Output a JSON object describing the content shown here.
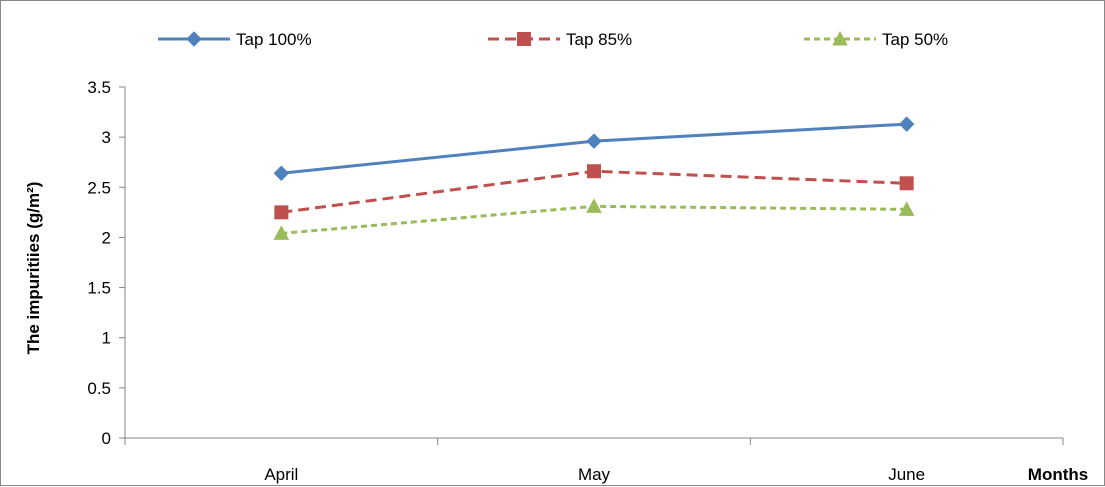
{
  "chart_data": {
    "type": "line",
    "categories": [
      "April",
      "May",
      "June"
    ],
    "series": [
      {
        "name": "Tap 100%",
        "values": [
          2.64,
          2.96,
          3.13
        ],
        "color": "#4F81BD",
        "marker": "diamond",
        "dash": "solid"
      },
      {
        "name": "Tap 85%",
        "values": [
          2.25,
          2.66,
          2.54
        ],
        "color": "#C0504D",
        "marker": "square",
        "dash": "dashed"
      },
      {
        "name": "Tap 50%",
        "values": [
          2.04,
          2.31,
          2.28
        ],
        "color": "#9BBB59",
        "marker": "triangle",
        "dash": "dashed"
      }
    ],
    "ylabel": "The impuritiies (g/m²)",
    "xlabel": "Months",
    "ylim": [
      0,
      3.5
    ],
    "yticks": [
      "0",
      "0.5",
      "1",
      "1.5",
      "2",
      "2.5",
      "3",
      "3.5"
    ],
    "grid": false,
    "legend_position": "top"
  }
}
